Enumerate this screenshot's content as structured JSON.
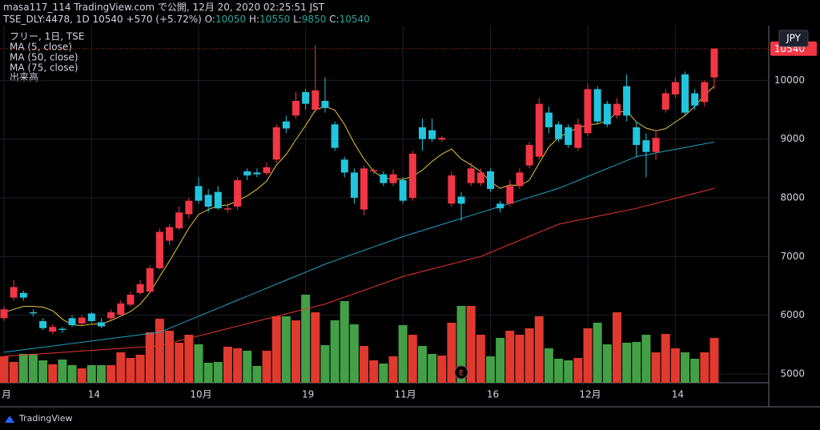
{
  "header": {
    "publish": "masa117_114 TradingView.com で公開, 12月 20, 2020 02:25:51 JST",
    "symbol": "TSE_DLY:4478, 1D",
    "last": "10540",
    "change": "+570 (+5.72%)",
    "ohlc": [
      {
        "label": "O:",
        "value": "10050"
      },
      {
        "label": "H:",
        "value": "10550"
      },
      {
        "label": "L:",
        "value": "9850"
      },
      {
        "label": "C:",
        "value": "10540"
      }
    ]
  },
  "footer": {
    "brand": "TradingView"
  },
  "chart_data": {
    "type": "candlestick",
    "legend_title": "フリー, 1日, TSE",
    "currency": "JPY",
    "event_marker": "E",
    "categories": [
      "月",
      null,
      null,
      null,
      null,
      null,
      null,
      null,
      null,
      "14",
      null,
      null,
      null,
      null,
      null,
      null,
      null,
      null,
      null,
      null,
      "10月",
      null,
      null,
      null,
      null,
      null,
      null,
      null,
      null,
      null,
      null,
      "19",
      null,
      null,
      null,
      null,
      null,
      null,
      null,
      null,
      null,
      "11月",
      null,
      null,
      null,
      null,
      null,
      null,
      null,
      null,
      "16",
      null,
      null,
      null,
      null,
      null,
      null,
      null,
      null,
      null,
      "12月",
      null,
      null,
      null,
      null,
      null,
      null,
      null,
      null,
      "14",
      null,
      null,
      null,
      null
    ],
    "open": [
      5950,
      6300,
      6380,
      6050,
      5900,
      5720,
      5770,
      5950,
      5860,
      6030,
      5880,
      5950,
      6010,
      6180,
      6380,
      6400,
      6800,
      7270,
      7480,
      7720,
      8200,
      8050,
      8100,
      7800,
      7850,
      8450,
      8430,
      8420,
      8650,
      9300,
      9400,
      9800,
      9500,
      9650,
      9250,
      8650,
      8430,
      7800,
      8450,
      8400,
      8250,
      8300,
      8000,
      9200,
      9150,
      8990,
      7900,
      8020,
      8250,
      8250,
      8450,
      7900,
      7900,
      8200,
      8550,
      8700,
      9450,
      9250,
      9200,
      8850,
      9100,
      9850,
      9600,
      9400,
      9900,
      9200,
      8980,
      8780,
      9500,
      9760,
      10100,
      9780,
      9630,
      10050
    ],
    "high": [
      6150,
      6600,
      6420,
      6100,
      5950,
      5850,
      5800,
      6000,
      6000,
      6050,
      5950,
      6100,
      6250,
      6400,
      6600,
      6850,
      7480,
      7550,
      7850,
      8000,
      8350,
      8150,
      8200,
      7900,
      8350,
      8500,
      8500,
      8600,
      9250,
      9400,
      9800,
      9850,
      10600,
      10050,
      9300,
      8700,
      8500,
      8550,
      8500,
      8450,
      8480,
      8350,
      8800,
      9350,
      9350,
      9050,
      8450,
      8100,
      8600,
      8500,
      8500,
      7950,
      8300,
      8500,
      8950,
      9700,
      9550,
      9300,
      9250,
      9350,
      9950,
      9900,
      9650,
      9700,
      10100,
      9300,
      9100,
      9150,
      9850,
      10050,
      10150,
      9850,
      10000,
      10550
    ],
    "low": [
      5900,
      6250,
      6250,
      5980,
      5750,
      5680,
      5700,
      5800,
      5830,
      5870,
      5780,
      5920,
      5980,
      6150,
      6350,
      6380,
      6780,
      7200,
      7450,
      7650,
      7900,
      7750,
      7800,
      7750,
      7800,
      8300,
      8350,
      8380,
      8600,
      9100,
      9350,
      9500,
      9450,
      9450,
      8800,
      8350,
      7900,
      7700,
      8400,
      8200,
      8200,
      7900,
      7950,
      8800,
      8950,
      8950,
      7850,
      7600,
      8200,
      8200,
      8100,
      7750,
      7850,
      8150,
      8500,
      8650,
      9100,
      8950,
      8850,
      8800,
      9050,
      9250,
      9200,
      9350,
      9300,
      8700,
      8350,
      8650,
      9450,
      9700,
      9400,
      9500,
      9550,
      9850
    ],
    "close": [
      6100,
      6480,
      6300,
      6030,
      5780,
      5800,
      5750,
      5830,
      5960,
      5900,
      5810,
      6050,
      6200,
      6350,
      6530,
      6800,
      7420,
      7500,
      7750,
      7950,
      7950,
      7850,
      7820,
      7820,
      8300,
      8380,
      8400,
      8520,
      9200,
      9180,
      9650,
      9600,
      9830,
      9530,
      8850,
      8430,
      8000,
      8500,
      8470,
      8250,
      8400,
      7950,
      8750,
      9000,
      9000,
      9020,
      8380,
      7900,
      8500,
      8430,
      8150,
      7820,
      8200,
      8430,
      8900,
      9600,
      9200,
      9000,
      8900,
      9250,
      9850,
      9300,
      9250,
      9600,
      9400,
      8900,
      8780,
      9020,
      9780,
      9970,
      9450,
      9570,
      9970,
      10540
    ],
    "up_color": "#f23645",
    "down_color": "#22c5dd",
    "volume": {
      "name": "出来高",
      "up_color": "#e0392f",
      "down_color": "#43a047",
      "values": [
        33,
        26,
        36,
        36,
        28,
        23,
        29,
        22,
        18,
        22,
        22,
        22,
        38,
        31,
        35,
        63,
        80,
        65,
        50,
        60,
        48,
        25,
        26,
        45,
        43,
        40,
        21,
        40,
        83,
        83,
        78,
        110,
        88,
        47,
        78,
        102,
        73,
        46,
        28,
        24,
        33,
        72,
        60,
        46,
        36,
        34,
        75,
        96,
        96,
        60,
        33,
        56,
        65,
        60,
        68,
        83,
        43,
        30,
        28,
        31,
        68,
        75,
        48,
        88,
        50,
        51,
        60,
        38,
        61,
        43,
        38,
        30,
        38,
        56
      ]
    },
    "series": [
      {
        "name": "MA (5, close)",
        "color": "#e6c340",
        "values": [
          6050,
          6100,
          6150,
          6150,
          6138,
          6078,
          5932,
          5838,
          5824,
          5848,
          5850,
          5910,
          5984,
          6062,
          6188,
          6386,
          6660,
          6920,
          7200,
          7484,
          7714,
          7800,
          7864,
          7878,
          7948,
          8034,
          8144,
          8284,
          8560,
          8736,
          8990,
          9230,
          9492,
          9558,
          9492,
          9248,
          8928,
          8662,
          8450,
          8330,
          8324,
          8314,
          8364,
          8470,
          8620,
          8744,
          8830,
          8660,
          8560,
          8446,
          8272,
          8160,
          8220,
          8206,
          8300,
          8590,
          8866,
          9026,
          9120,
          9190,
          9240,
          9260,
          9310,
          9450,
          9480,
          9290,
          9186,
          9140,
          9176,
          9290,
          9400,
          9558,
          9748,
          9900
        ]
      },
      {
        "name": "MA (50, close)",
        "color": "#1fa3c4",
        "values": [
          5370,
          5391,
          5413,
          5434,
          5455,
          5476,
          5498,
          5519,
          5540,
          5561,
          5583,
          5604,
          5625,
          5646,
          5668,
          5689,
          5710,
          5778,
          5846,
          5915,
          5983,
          6051,
          6119,
          6188,
          6256,
          6324,
          6392,
          6460,
          6529,
          6597,
          6665,
          6733,
          6802,
          6870,
          6929,
          6988,
          7046,
          7105,
          7164,
          7223,
          7281,
          7340,
          7391,
          7443,
          7494,
          7545,
          7596,
          7648,
          7699,
          7750,
          7801,
          7853,
          7904,
          7955,
          8006,
          8058,
          8109,
          8160,
          8228,
          8295,
          8363,
          8430,
          8498,
          8565,
          8633,
          8700,
          8731,
          8763,
          8794,
          8825,
          8856,
          8888,
          8919,
          8950
        ]
      },
      {
        "name": "MA (75, close)",
        "color": "#e8372c",
        "values": [
          5300,
          5311,
          5323,
          5334,
          5345,
          5356,
          5368,
          5379,
          5390,
          5401,
          5413,
          5424,
          5435,
          5446,
          5458,
          5469,
          5480,
          5522,
          5564,
          5605,
          5647,
          5689,
          5731,
          5772,
          5814,
          5856,
          5898,
          5939,
          5981,
          6023,
          6065,
          6106,
          6148,
          6190,
          6249,
          6308,
          6366,
          6425,
          6484,
          6543,
          6601,
          6660,
          6703,
          6745,
          6788,
          6830,
          6873,
          6915,
          6958,
          7000,
          7069,
          7138,
          7206,
          7275,
          7344,
          7413,
          7481,
          7550,
          7584,
          7618,
          7651,
          7685,
          7719,
          7753,
          7786,
          7820,
          7863,
          7905,
          7948,
          7990,
          8033,
          8075,
          8118,
          8160
        ]
      }
    ],
    "ylim": [
      4850,
      10850
    ],
    "yticks": [
      5000,
      6000,
      7000,
      8000,
      9000,
      10000
    ],
    "grid": true
  }
}
